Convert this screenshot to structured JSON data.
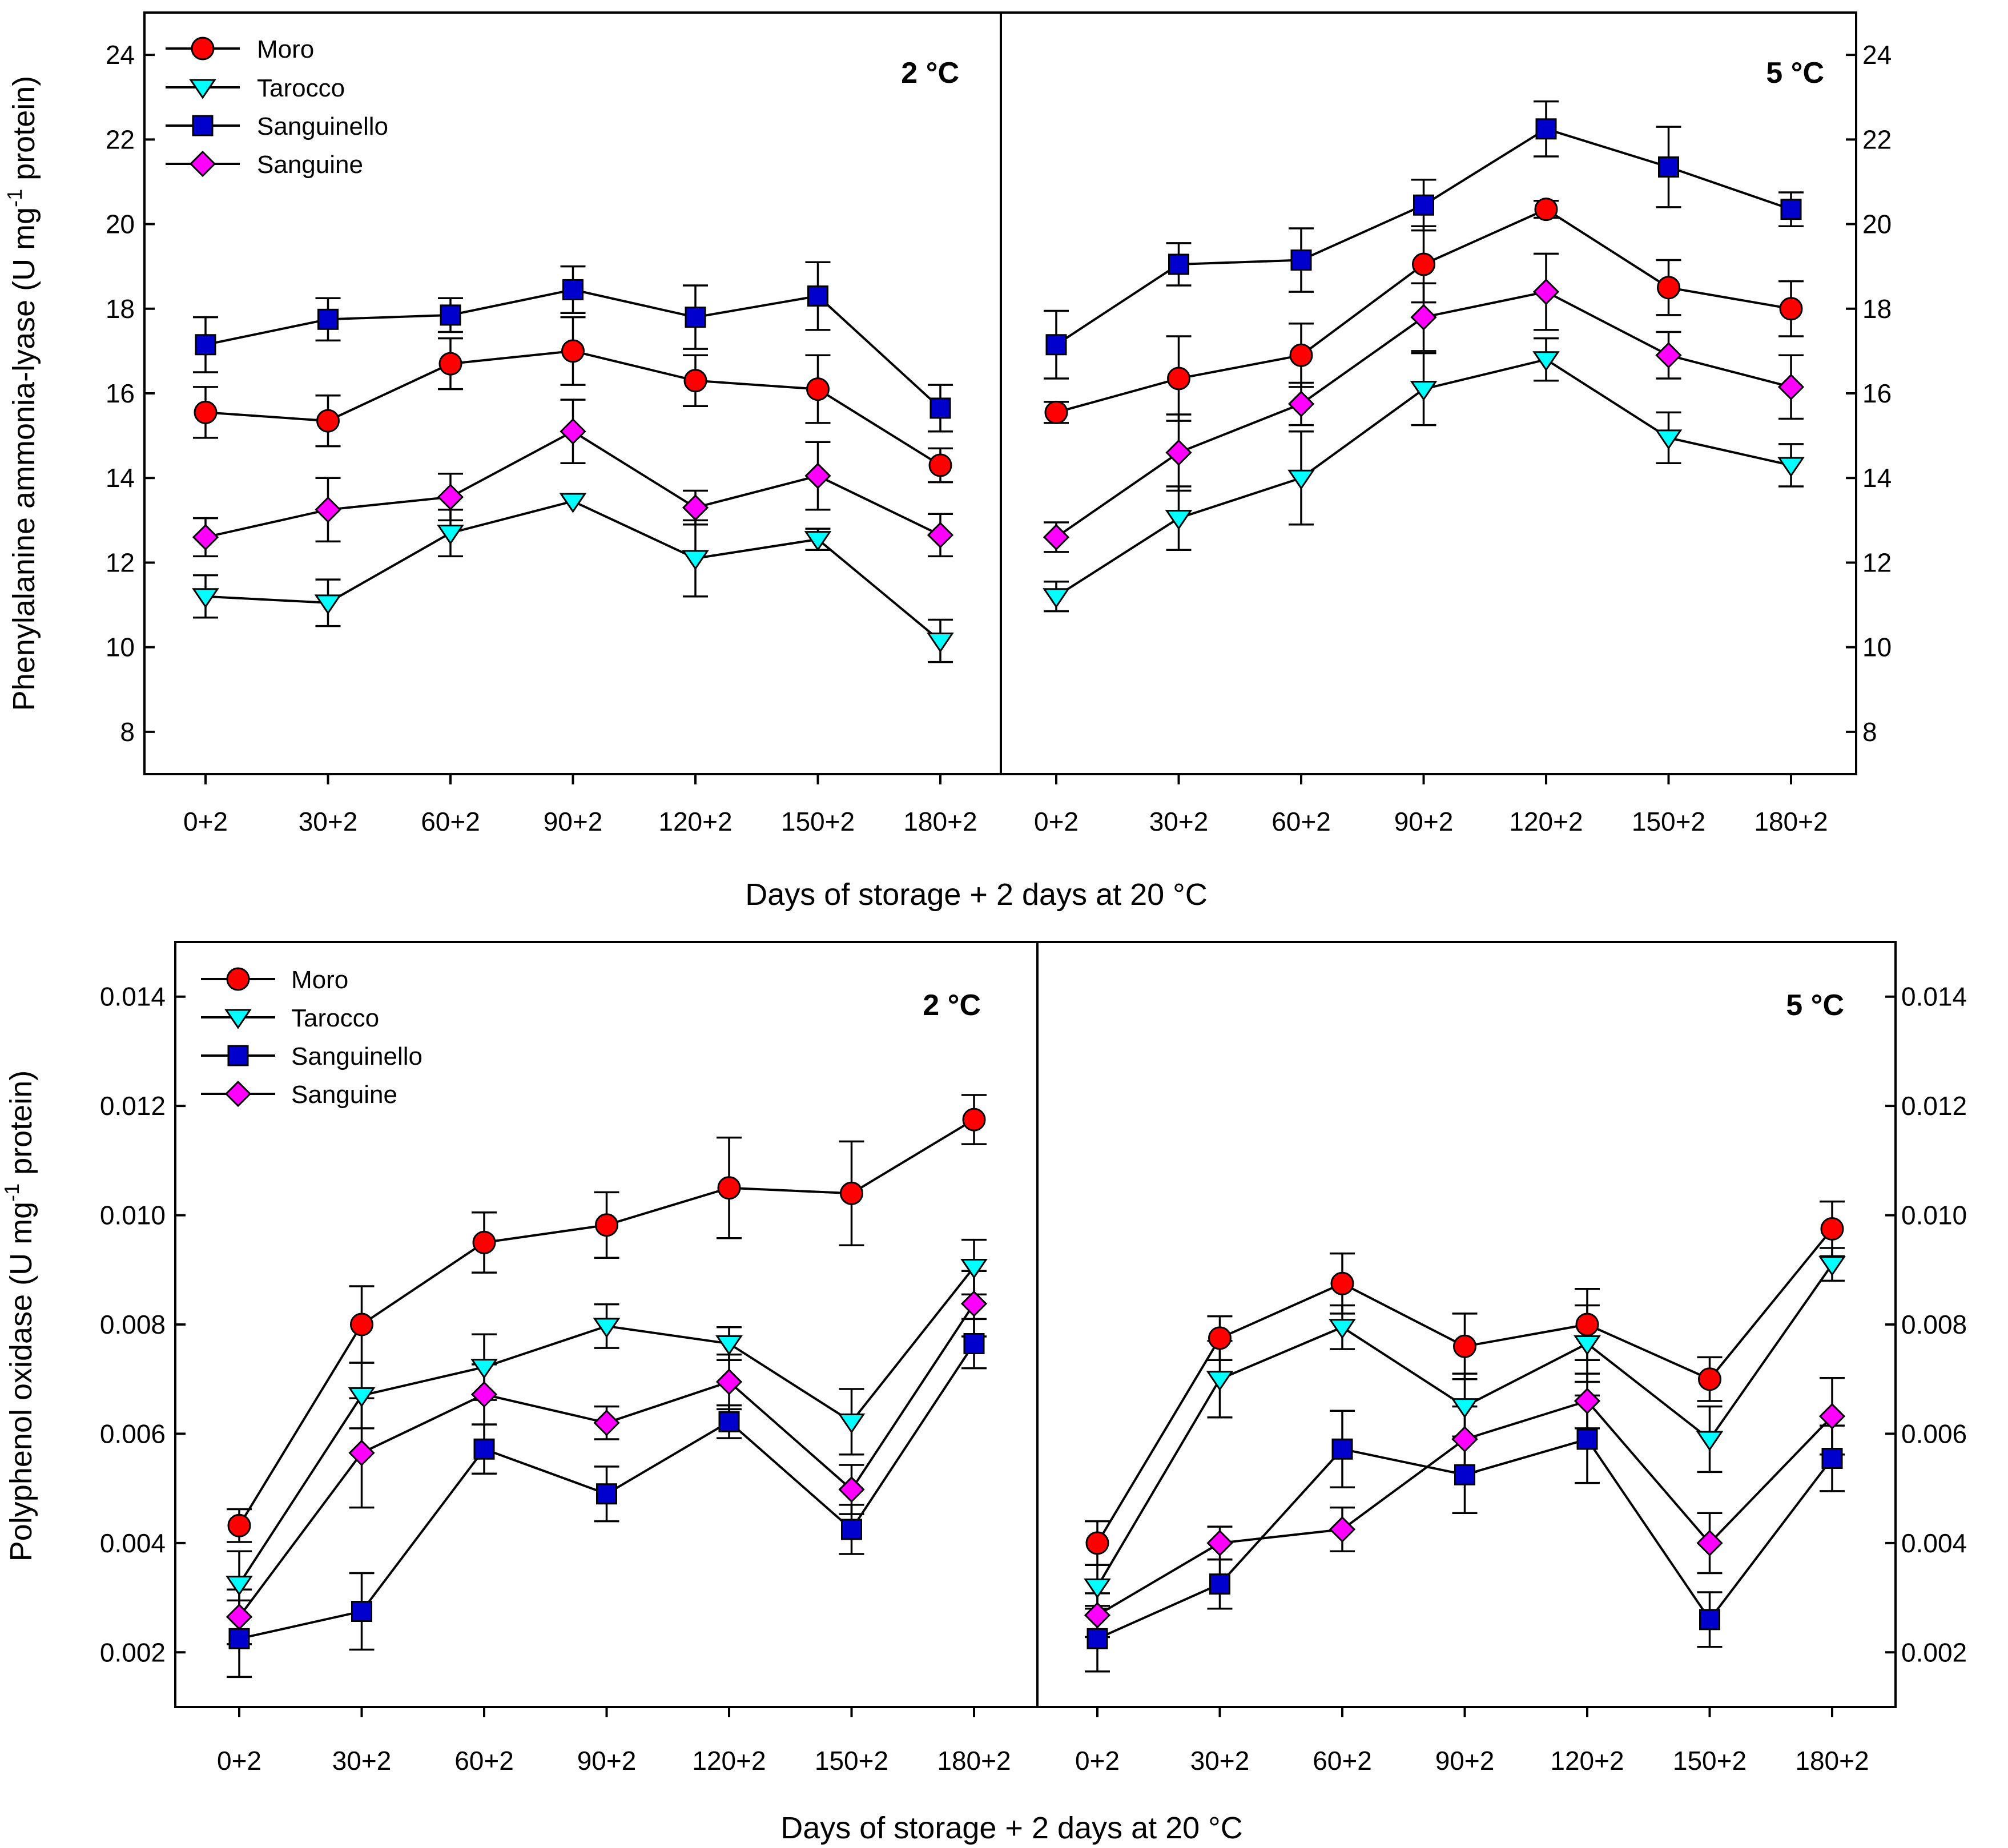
{
  "legend": {
    "series": [
      {
        "name": "Moro",
        "marker": "circle",
        "color": "#ff0000"
      },
      {
        "name": "Tarocco",
        "marker": "triangle-down",
        "color": "#00ffff"
      },
      {
        "name": "Sanguinello",
        "marker": "square",
        "color": "#0000cc"
      },
      {
        "name": "Sanguine",
        "marker": "diamond",
        "color": "#ff00ff"
      }
    ]
  },
  "chart_data": [
    {
      "type": "line",
      "ylabel_main": "Phenylalanine ammonia-lyase  (U mg",
      "ylabel_sup": "-1",
      "ylabel_end": " protein)",
      "xlabel": "Days of storage + 2 days at 20 °C",
      "ylim": [
        7,
        25
      ],
      "yticks": [
        "8",
        "10",
        "12",
        "14",
        "16",
        "18",
        "20",
        "22",
        "24"
      ],
      "ytick_values": [
        8,
        10,
        12,
        14,
        16,
        18,
        20,
        22,
        24
      ],
      "panels": [
        {
          "label": "2 °C",
          "categories": [
            "0+2",
            "30+2",
            "60+2",
            "90+2",
            "120+2",
            "150+2",
            "180+2"
          ],
          "series": [
            {
              "name": "Moro",
              "values": [
                15.55,
                15.35,
                16.7,
                17.0,
                16.3,
                16.1,
                14.3
              ],
              "errors": [
                0.6,
                0.6,
                0.6,
                0.8,
                0.6,
                0.8,
                0.4
              ]
            },
            {
              "name": "Tarocco",
              "values": [
                11.2,
                11.05,
                12.7,
                13.45,
                12.1,
                12.55,
                10.15
              ],
              "errors": [
                0.5,
                0.55,
                0.55,
                0.0,
                0.9,
                0.25,
                0.5
              ]
            },
            {
              "name": "Sanguinello",
              "values": [
                17.15,
                17.75,
                17.85,
                18.45,
                17.8,
                18.3,
                15.65
              ],
              "errors": [
                0.65,
                0.5,
                0.4,
                0.55,
                0.75,
                0.8,
                0.55
              ]
            },
            {
              "name": "Sanguine",
              "values": [
                12.6,
                13.25,
                13.55,
                15.1,
                13.3,
                14.05,
                12.65
              ],
              "errors": [
                0.45,
                0.75,
                0.55,
                0.75,
                0.4,
                0.8,
                0.5
              ]
            }
          ]
        },
        {
          "label": "5 °C",
          "categories": [
            "0+2",
            "30+2",
            "60+2",
            "90+2",
            "120+2",
            "150+2",
            "180+2"
          ],
          "series": [
            {
              "name": "Moro",
              "values": [
                15.55,
                16.35,
                16.9,
                19.05,
                20.35,
                18.5,
                18.0
              ],
              "errors": [
                0.25,
                1.0,
                0.75,
                0.9,
                0.2,
                0.65,
                0.65
              ]
            },
            {
              "name": "Tarocco",
              "values": [
                11.2,
                13.05,
                14.0,
                16.1,
                16.8,
                14.95,
                14.3
              ],
              "errors": [
                0.35,
                0.75,
                1.1,
                0.85,
                0.5,
                0.6,
                0.5
              ]
            },
            {
              "name": "Sanguinello",
              "values": [
                17.15,
                19.05,
                19.15,
                20.45,
                22.25,
                21.35,
                20.35
              ],
              "errors": [
                0.8,
                0.5,
                0.75,
                0.6,
                0.65,
                0.95,
                0.4
              ]
            },
            {
              "name": "Sanguine",
              "values": [
                12.6,
                14.6,
                15.75,
                17.8,
                18.4,
                16.9,
                16.15
              ],
              "errors": [
                0.35,
                0.9,
                0.5,
                0.8,
                0.9,
                0.55,
                0.75
              ]
            }
          ]
        }
      ]
    },
    {
      "type": "line",
      "ylabel_main": "Polyphenol oxidase (U mg",
      "ylabel_sup": "-1",
      "ylabel_end": " protein)",
      "xlabel": "Days of storage + 2 days at 20 °C",
      "ylim": [
        0.001,
        0.015
      ],
      "yticks": [
        "0.002",
        "0.004",
        "0.006",
        "0.008",
        "0.010",
        "0.012",
        "0.014"
      ],
      "ytick_values": [
        0.002,
        0.004,
        0.006,
        0.008,
        0.01,
        0.012,
        0.014
      ],
      "panels": [
        {
          "label": "2 °C",
          "categories": [
            "0+2",
            "30+2",
            "60+2",
            "90+2",
            "120+2",
            "150+2",
            "180+2"
          ],
          "series": [
            {
              "name": "Moro",
              "values": [
                0.00432,
                0.008,
                0.0095,
                0.00982,
                0.0105,
                0.0104,
                0.01175
              ],
              "errors": [
                0.0003,
                0.0007,
                0.00055,
                0.0006,
                0.00092,
                0.00095,
                0.00045
              ]
            },
            {
              "name": "Tarocco",
              "values": [
                0.00325,
                0.0067,
                0.00722,
                0.00797,
                0.00765,
                0.00622,
                0.00905
              ],
              "errors": [
                0.0006,
                0.0006,
                0.0006,
                0.0004,
                0.0003,
                0.0006,
                0.0005
              ]
            },
            {
              "name": "Sanguinello",
              "values": [
                0.00225,
                0.00275,
                0.00572,
                0.0049,
                0.00622,
                0.00425,
                0.00765
              ],
              "errors": [
                0.0007,
                0.0007,
                0.00045,
                0.0005,
                0.0003,
                0.00045,
                0.00045
              ]
            },
            {
              "name": "Sanguine",
              "values": [
                0.00265,
                0.00565,
                0.00672,
                0.0062,
                0.00695,
                0.00498,
                0.00838
              ],
              "errors": [
                0.0005,
                0.001,
                0.00055,
                0.0003,
                0.0005,
                0.00045,
                0.0006
              ]
            }
          ]
        },
        {
          "label": "5 °C",
          "categories": [
            "0+2",
            "30+2",
            "60+2",
            "90+2",
            "120+2",
            "150+2",
            "180+2"
          ],
          "series": [
            {
              "name": "Moro",
              "values": [
                0.004,
                0.00775,
                0.00875,
                0.0076,
                0.008,
                0.007,
                0.00975
              ],
              "errors": [
                0.0004,
                0.0004,
                0.00055,
                0.0006,
                0.00065,
                0.0004,
                0.0005
              ]
            },
            {
              "name": "Tarocco",
              "values": [
                0.0032,
                0.007,
                0.00795,
                0.0065,
                0.00765,
                0.0059,
                0.0091
              ],
              "errors": [
                0.0004,
                0.0007,
                0.0004,
                0.0006,
                0.0007,
                0.0006,
                0.0003
              ]
            },
            {
              "name": "Sanguinello",
              "values": [
                0.00225,
                0.00325,
                0.00572,
                0.00525,
                0.0059,
                0.0026,
                0.00555
              ],
              "errors": [
                0.0006,
                0.00045,
                0.0007,
                0.0007,
                0.0008,
                0.0005,
                0.0006
              ]
            },
            {
              "name": "Sanguine",
              "values": [
                0.00268,
                0.004,
                0.00425,
                0.0059,
                0.0066,
                0.004,
                0.00632
              ],
              "errors": [
                0.0004,
                0.0003,
                0.0004,
                0.0006,
                0.0005,
                0.00055,
                0.0007
              ]
            }
          ]
        }
      ]
    }
  ]
}
